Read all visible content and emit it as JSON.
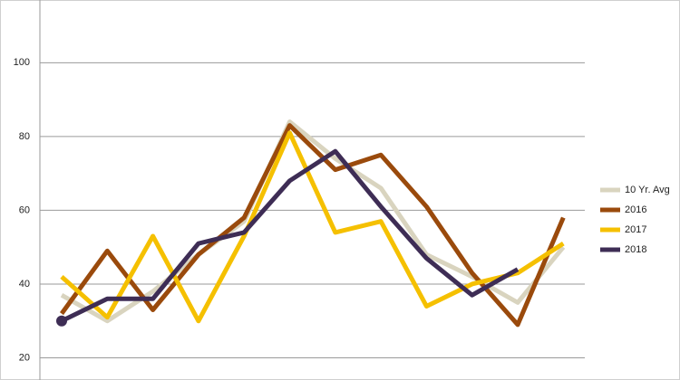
{
  "chart_data": {
    "type": "line",
    "categories": [
      null,
      null,
      null,
      null,
      null,
      null,
      null,
      null,
      null,
      null,
      null,
      null
    ],
    "series": [
      {
        "name": "10 Yr. Avg",
        "color": "#d9d4bf",
        "values": [
          37,
          30,
          38,
          48,
          57,
          84,
          74,
          66,
          48,
          42,
          35,
          50
        ]
      },
      {
        "name": "2016",
        "color": "#9a4a0c",
        "values": [
          32,
          49,
          33,
          48,
          58,
          83,
          71,
          75,
          61,
          43,
          29,
          58
        ]
      },
      {
        "name": "2017",
        "color": "#f5c000",
        "values": [
          42,
          31,
          53,
          30,
          53,
          81,
          54,
          57,
          34,
          40,
          43,
          51
        ]
      },
      {
        "name": "2018",
        "color": "#3e2d55",
        "values": [
          30,
          36,
          36,
          51,
          54,
          68,
          76,
          61,
          47,
          37,
          44,
          null
        ]
      }
    ],
    "ylim": [
      14,
      117
    ],
    "yticks": [
      20,
      40,
      60,
      80,
      100
    ],
    "grid": true,
    "legend": "right"
  }
}
